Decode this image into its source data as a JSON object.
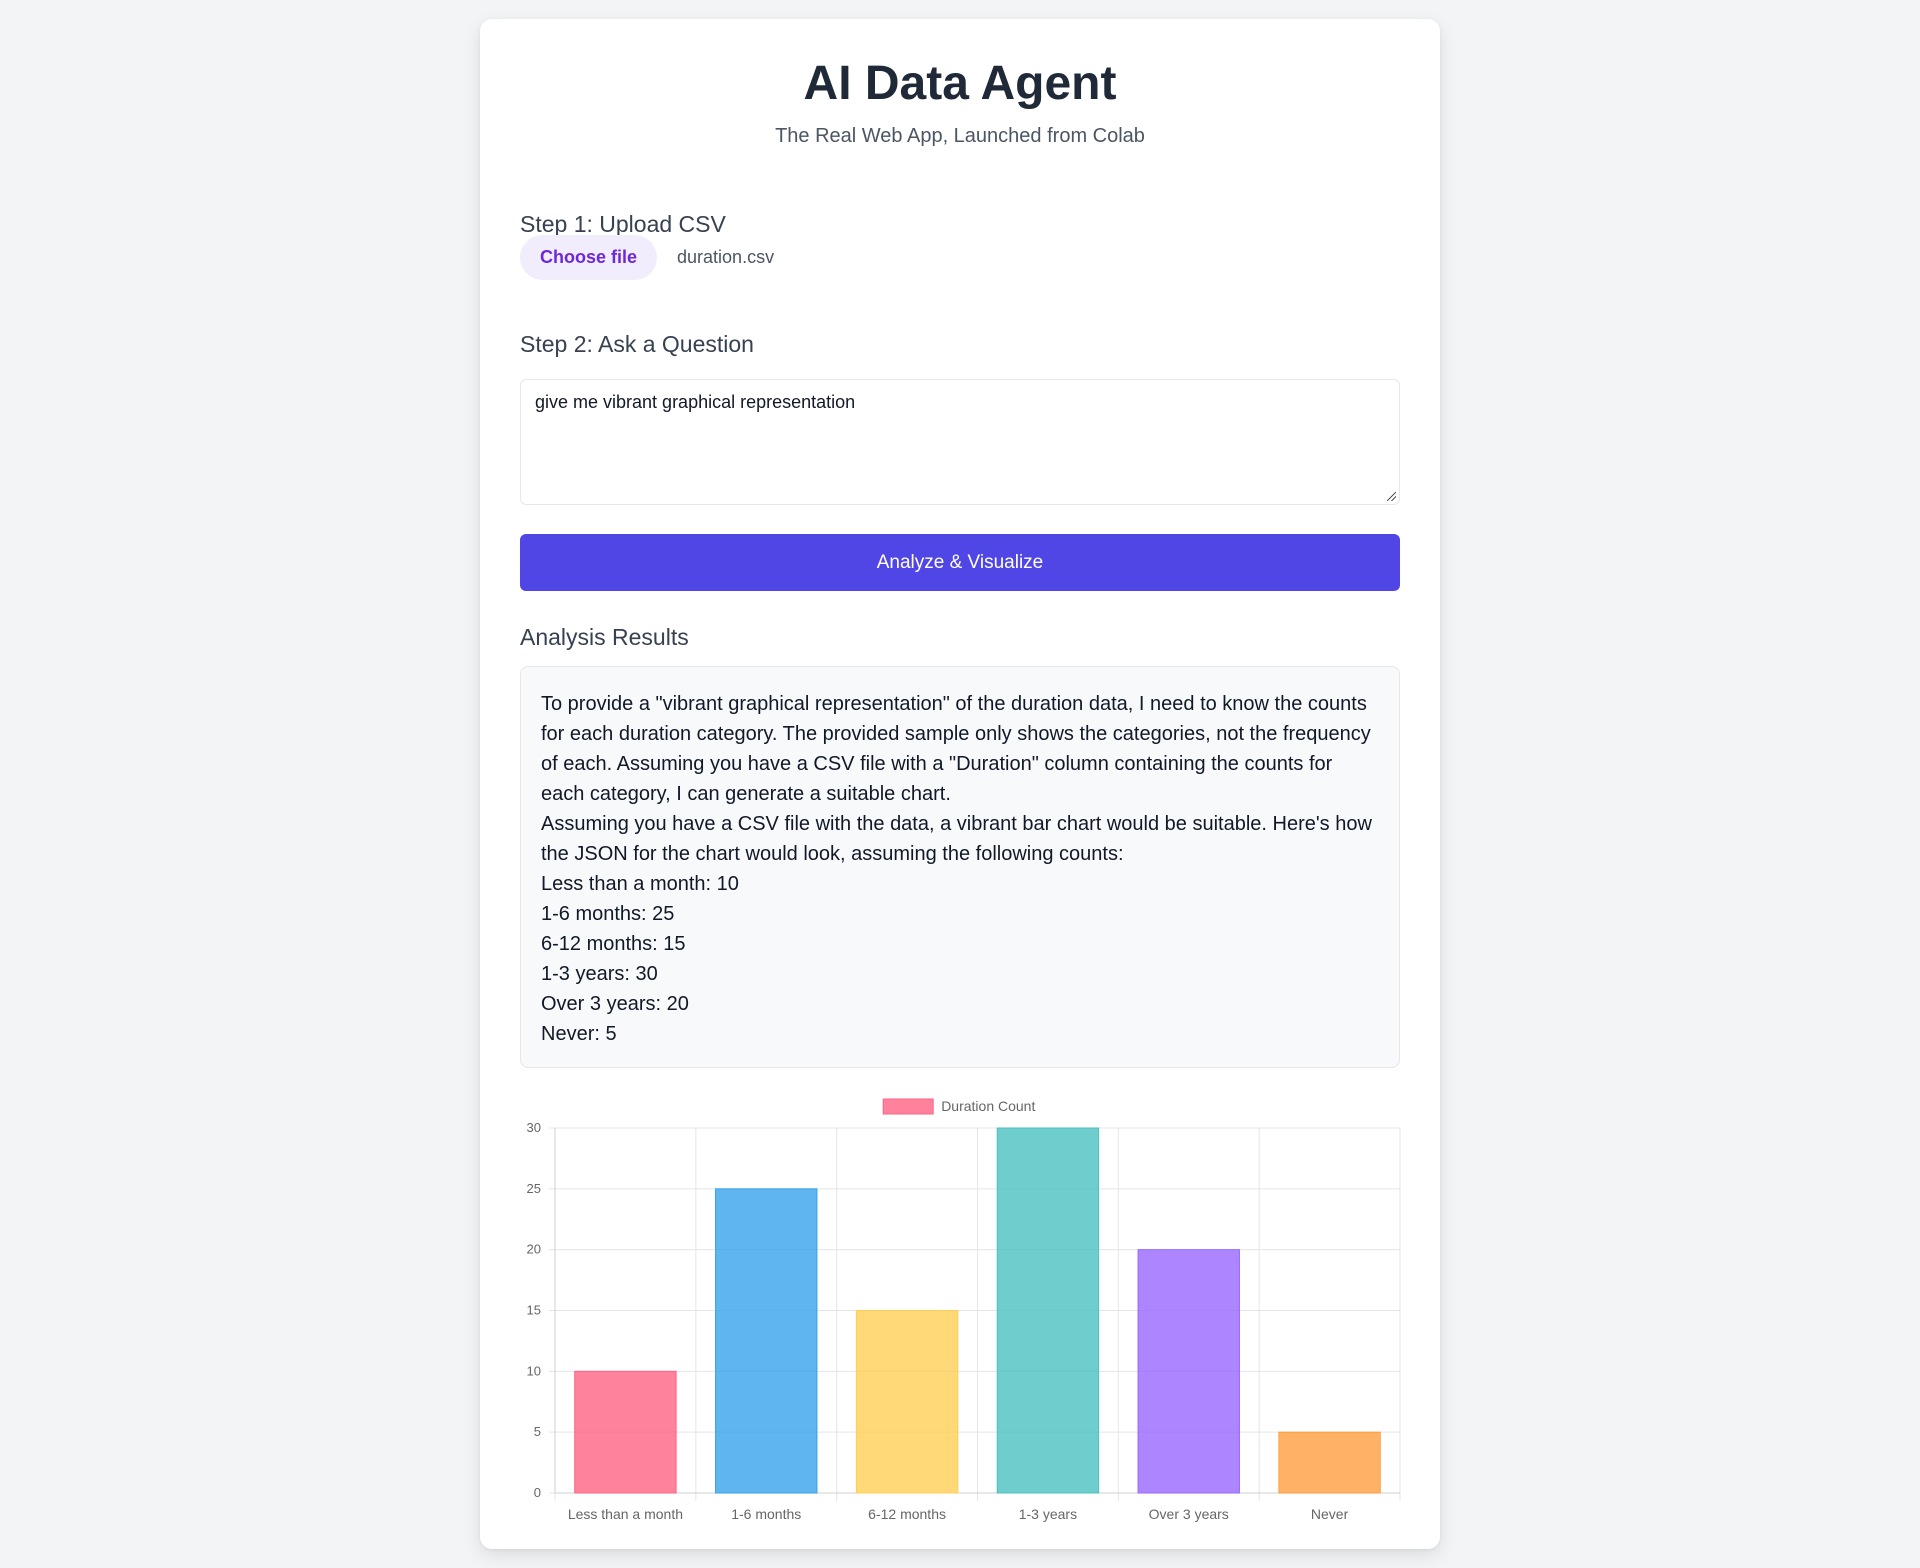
{
  "header": {
    "title": "AI Data Agent",
    "subtitle": "The Real Web App, Launched from Colab"
  },
  "step1": {
    "label": "Step 1: Upload CSV",
    "choose_file_label": "Choose file",
    "file_name": "duration.csv"
  },
  "step2": {
    "label": "Step 2: Ask a Question",
    "question_value": "give me vibrant graphical representation"
  },
  "actions": {
    "analyze_label": "Analyze & Visualize"
  },
  "results": {
    "title": "Analysis Results",
    "paragraphs": [
      "To provide a \"vibrant graphical representation\" of the duration data, I need to know the counts for each duration category. The provided sample only shows the categories, not the frequency of each. Assuming you have a CSV file with a \"Duration\" column containing the counts for each category, I can generate a suitable chart.",
      "Assuming you have a CSV file with the data, a vibrant bar chart would be suitable. Here's how the JSON for the chart would look, assuming the following counts:",
      "Less than a month: 10",
      "1-6 months: 25",
      "6-12 months: 15",
      "1-3 years: 30",
      "Over 3 years: 20",
      "Never: 5"
    ]
  },
  "chart_data": {
    "type": "bar",
    "categories": [
      "Less than a month",
      "1-6 months",
      "6-12 months",
      "1-3 years",
      "Over 3 years",
      "Never"
    ],
    "series": [
      {
        "name": "Duration Count",
        "values": [
          10,
          25,
          15,
          30,
          20,
          5
        ]
      }
    ],
    "bar_colors": [
      "#ff6384",
      "#36a2eb",
      "#ffce56",
      "#4bc0c0",
      "#9966ff",
      "#ff9f40"
    ],
    "legend_color": "#ff6384",
    "ylim": [
      0,
      30
    ],
    "yticks": [
      0,
      5,
      10,
      15,
      20,
      25,
      30
    ],
    "grid": true,
    "legend_position": "top"
  }
}
